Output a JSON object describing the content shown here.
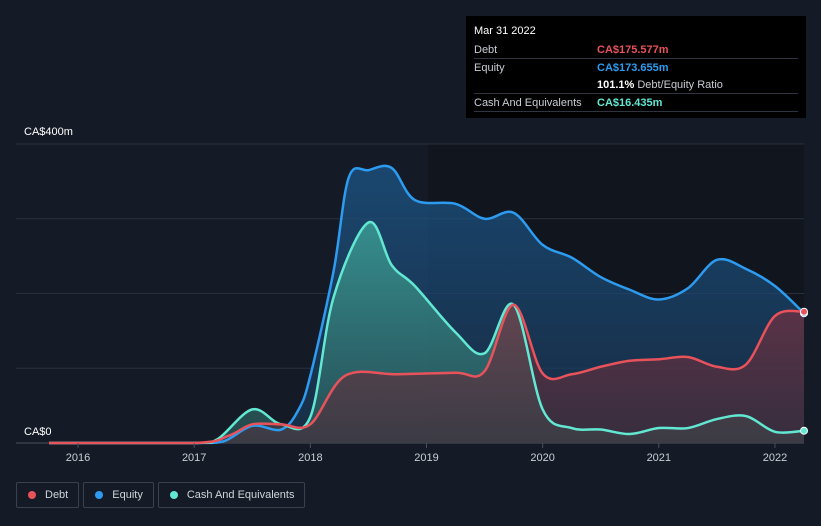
{
  "tooltip": {
    "date": "Mar 31 2022",
    "rows": [
      {
        "label": "Debt",
        "value": "CA$175.577m",
        "color": "#e8525a"
      },
      {
        "label": "Equity",
        "value": "CA$173.655m",
        "color": "#2d9cf0"
      },
      {
        "label": "",
        "value": "101.1%",
        "sub": "Debt/Equity Ratio",
        "color": "#ffffff"
      },
      {
        "label": "Cash And Equivalents",
        "value": "CA$16.435m",
        "color": "#62e8d2"
      }
    ]
  },
  "legend": [
    {
      "label": "Debt",
      "color": "#e8525a"
    },
    {
      "label": "Equity",
      "color": "#2d9cf0"
    },
    {
      "label": "Cash And Equivalents",
      "color": "#62e8d2"
    }
  ],
  "chart_data": {
    "type": "area",
    "ylabel_top": "CA$400m",
    "ylabel_bottom": "CA$0",
    "ylim": [
      0,
      400
    ],
    "xlim": [
      2015.75,
      2022.25
    ],
    "x_ticks": [
      "2016",
      "2017",
      "2018",
      "2019",
      "2020",
      "2021",
      "2022"
    ],
    "series": [
      {
        "name": "Equity",
        "color": "#2d9cf0",
        "points": [
          [
            2015.75,
            0
          ],
          [
            2017.0,
            0
          ],
          [
            2017.25,
            2
          ],
          [
            2017.5,
            23
          ],
          [
            2017.75,
            18
          ],
          [
            2017.9,
            45
          ],
          [
            2018.0,
            90
          ],
          [
            2018.2,
            230
          ],
          [
            2018.33,
            355
          ],
          [
            2018.5,
            365
          ],
          [
            2018.7,
            368
          ],
          [
            2018.9,
            325
          ],
          [
            2019.25,
            320
          ],
          [
            2019.5,
            300
          ],
          [
            2019.75,
            308
          ],
          [
            2020.0,
            265
          ],
          [
            2020.25,
            248
          ],
          [
            2020.5,
            222
          ],
          [
            2020.75,
            205
          ],
          [
            2021.0,
            192
          ],
          [
            2021.25,
            207
          ],
          [
            2021.5,
            245
          ],
          [
            2021.75,
            233
          ],
          [
            2022.0,
            210
          ],
          [
            2022.25,
            173.655
          ]
        ]
      },
      {
        "name": "Cash And Equivalents",
        "color": "#62e8d2",
        "points": [
          [
            2015.75,
            0
          ],
          [
            2017.0,
            0
          ],
          [
            2017.2,
            5
          ],
          [
            2017.5,
            45
          ],
          [
            2017.75,
            25
          ],
          [
            2018.0,
            35
          ],
          [
            2018.2,
            195
          ],
          [
            2018.5,
            295
          ],
          [
            2018.7,
            238
          ],
          [
            2018.9,
            210
          ],
          [
            2019.25,
            148
          ],
          [
            2019.5,
            120
          ],
          [
            2019.75,
            185
          ],
          [
            2020.0,
            45
          ],
          [
            2020.25,
            20
          ],
          [
            2020.5,
            18
          ],
          [
            2020.75,
            12
          ],
          [
            2021.0,
            20
          ],
          [
            2021.25,
            20
          ],
          [
            2021.5,
            32
          ],
          [
            2021.75,
            36
          ],
          [
            2022.0,
            15
          ],
          [
            2022.25,
            16.435
          ]
        ]
      },
      {
        "name": "Debt",
        "color": "#e8525a",
        "points": [
          [
            2015.75,
            0
          ],
          [
            2017.0,
            0
          ],
          [
            2017.3,
            10
          ],
          [
            2017.5,
            25
          ],
          [
            2017.75,
            25
          ],
          [
            2018.0,
            25
          ],
          [
            2018.3,
            90
          ],
          [
            2018.75,
            92
          ],
          [
            2019.25,
            94
          ],
          [
            2019.5,
            96
          ],
          [
            2019.75,
            185
          ],
          [
            2020.0,
            93
          ],
          [
            2020.25,
            92
          ],
          [
            2020.5,
            102
          ],
          [
            2020.75,
            110
          ],
          [
            2021.0,
            112
          ],
          [
            2021.25,
            115
          ],
          [
            2021.5,
            102
          ],
          [
            2021.75,
            105
          ],
          [
            2022.0,
            170
          ],
          [
            2022.25,
            175.577
          ]
        ]
      }
    ]
  }
}
